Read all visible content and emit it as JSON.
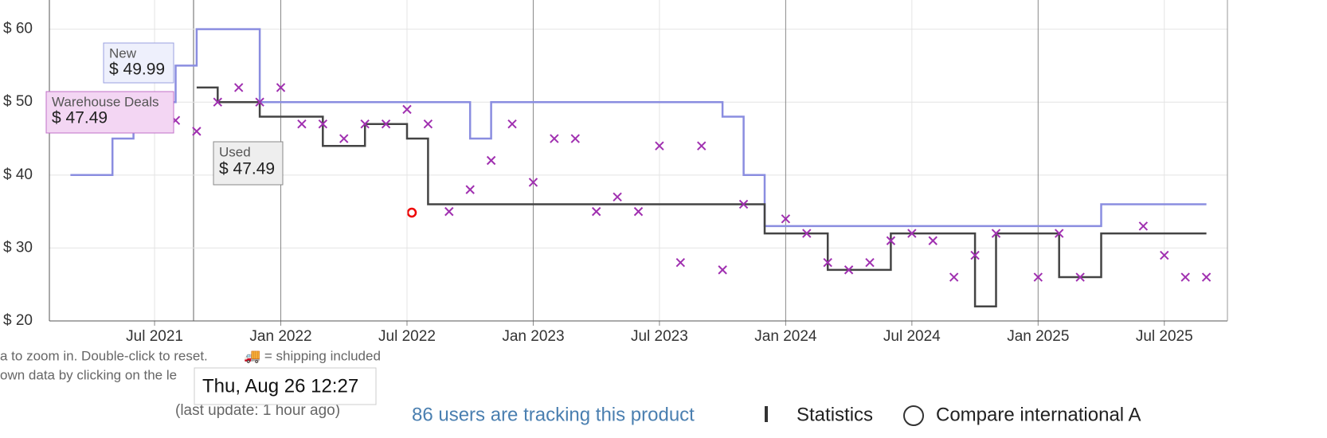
{
  "chart_data": {
    "type": "line",
    "xlim": [
      "2021-02",
      "2025-10"
    ],
    "ylim": [
      20,
      64
    ],
    "xticks": [
      {
        "value": "2021-07",
        "label": "Jul 2021"
      },
      {
        "value": "2022-01",
        "label": "Jan 2022"
      },
      {
        "value": "2022-07",
        "label": "Jul 2022"
      },
      {
        "value": "2023-01",
        "label": "Jan 2023"
      },
      {
        "value": "2023-07",
        "label": "Jul 2023"
      },
      {
        "value": "2024-01",
        "label": "Jan 2024"
      },
      {
        "value": "2024-07",
        "label": "Jul 2024"
      },
      {
        "value": "2025-01",
        "label": "Jan 2025"
      },
      {
        "value": "2025-07",
        "label": "Jul 2025"
      }
    ],
    "yticks": [
      {
        "value": 20,
        "label": "$ 20"
      },
      {
        "value": 30,
        "label": "$ 30"
      },
      {
        "value": 40,
        "label": "$ 40"
      },
      {
        "value": 50,
        "label": "$ 50"
      },
      {
        "value": 60,
        "label": "$ 60"
      }
    ],
    "grid": true,
    "series": [
      {
        "name": "New",
        "color": "#8a8de0",
        "x": [
          "2021-03",
          "2021-05",
          "2021-05",
          "2021-06",
          "2021-06",
          "2021-08",
          "2021-08",
          "2021-09",
          "2021-09",
          "2021-12",
          "2021-12",
          "2022-10",
          "2022-10",
          "2022-11",
          "2022-11",
          "2023-10",
          "2023-10",
          "2023-11",
          "2023-11",
          "2023-12",
          "2023-12",
          "2025-04",
          "2025-04",
          "2025-09"
        ],
        "values": [
          40,
          40,
          45,
          45,
          50,
          50,
          55,
          55,
          60,
          60,
          50,
          50,
          45,
          45,
          50,
          50,
          48,
          48,
          40,
          40,
          33,
          33,
          36,
          36
        ]
      },
      {
        "name": "Used",
        "color": "#444444",
        "x": [
          "2021-09",
          "2021-10",
          "2021-10",
          "2021-12",
          "2021-12",
          "2022-03",
          "2022-03",
          "2022-05",
          "2022-05",
          "2022-07",
          "2022-07",
          "2022-08",
          "2022-08",
          "2023-12",
          "2023-12",
          "2024-03",
          "2024-03",
          "2024-06",
          "2024-06",
          "2024-10",
          "2024-10",
          "2024-11",
          "2024-11",
          "2025-02",
          "2025-02",
          "2025-04",
          "2025-04",
          "2025-09"
        ],
        "values": [
          52,
          52,
          50,
          50,
          48,
          48,
          44,
          44,
          47,
          47,
          45,
          45,
          36,
          36,
          32,
          32,
          27,
          27,
          32,
          32,
          22,
          22,
          32,
          32,
          26,
          26,
          32,
          32
        ]
      },
      {
        "name": "Warehouse Deals",
        "color": "#a030b0",
        "x": [
          "2021-08",
          "2021-09",
          "2021-10",
          "2021-11",
          "2021-12",
          "2022-01",
          "2022-02",
          "2022-03",
          "2022-04",
          "2022-05",
          "2022-06",
          "2022-07",
          "2022-08",
          "2022-09",
          "2022-10",
          "2022-11",
          "2022-12",
          "2023-01",
          "2023-02",
          "2023-03",
          "2023-04",
          "2023-05",
          "2023-06",
          "2023-07",
          "2023-08",
          "2023-09",
          "2023-10",
          "2023-11",
          "2024-01",
          "2024-02",
          "2024-03",
          "2024-04",
          "2024-05",
          "2024-06",
          "2024-07",
          "2024-08",
          "2024-09",
          "2024-10",
          "2024-11",
          "2025-01",
          "2025-02",
          "2025-03",
          "2025-06",
          "2025-07",
          "2025-08",
          "2025-09"
        ],
        "values": [
          47.49,
          46,
          50,
          52,
          50,
          52,
          47,
          47,
          45,
          47,
          47,
          49,
          47,
          35,
          38,
          42,
          47,
          39,
          45,
          45,
          35,
          37,
          35,
          44,
          28,
          44,
          27,
          36,
          34,
          32,
          28,
          27,
          28,
          31,
          32,
          31,
          26,
          29,
          32,
          26,
          32,
          26,
          33,
          29,
          26,
          26
        ]
      }
    ],
    "tooltips": [
      {
        "label": "New",
        "price": "$ 49.99"
      },
      {
        "label": "Warehouse Deals",
        "price": "$ 47.49"
      },
      {
        "label": "Used",
        "price": "$ 47.49"
      }
    ],
    "hover_date": "Thu, Aug 26 12:27"
  },
  "footer": {
    "hint": "a to zoom in. Double-click to reset.",
    "shipping": "🚚 = shipping included",
    "hint2": "own data by clicking on the le",
    "last_update": "(last update: 1 hour ago)",
    "tracking": "86 users are tracking this product",
    "statistics": "Statistics",
    "compare": "Compare international A"
  }
}
